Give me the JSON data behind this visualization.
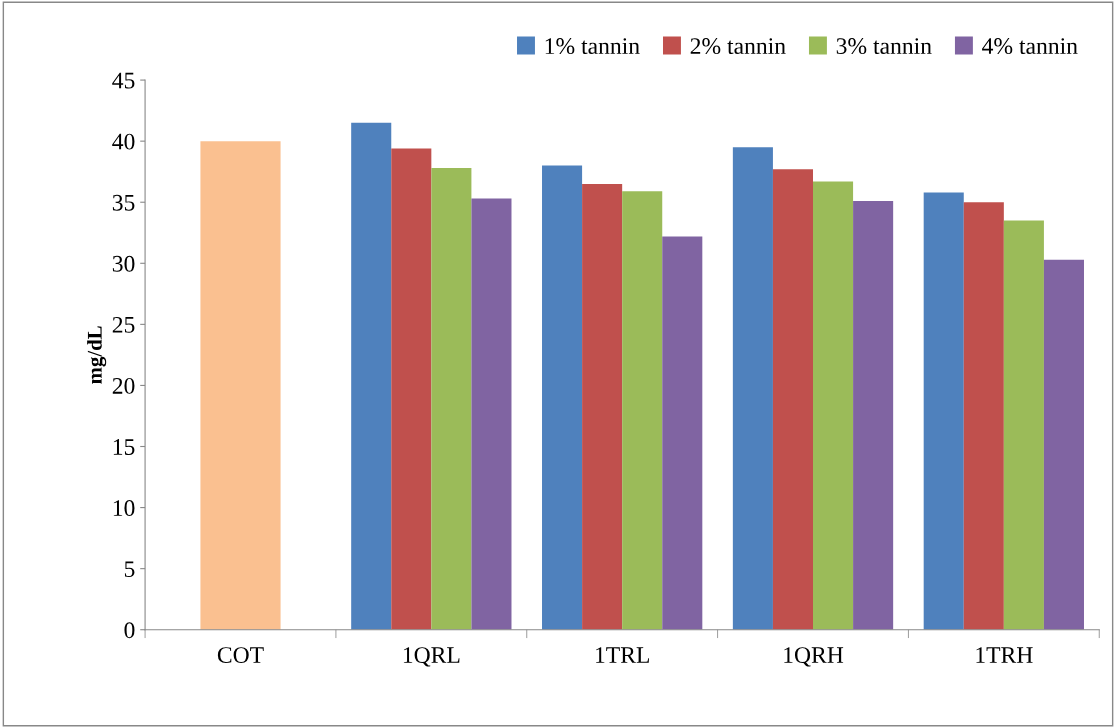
{
  "chart_data": {
    "type": "bar",
    "ylabel": "mg/dL",
    "categories": [
      "COT",
      "1QRL",
      "1TRL",
      "1QRH",
      "1TRH"
    ],
    "series": [
      {
        "color": "#fac090",
        "values": [
          40.0,
          null,
          null,
          null,
          null
        ]
      },
      {
        "name": "1% tannin",
        "color": "#4f81bd",
        "values": [
          null,
          41.5,
          38.0,
          39.5,
          35.8
        ]
      },
      {
        "name": "2% tannin",
        "color": "#c0504d",
        "values": [
          null,
          39.4,
          36.5,
          37.7,
          35.0
        ]
      },
      {
        "name": "3% tannin",
        "color": "#9bbb59",
        "values": [
          null,
          37.8,
          35.9,
          36.7,
          33.5
        ]
      },
      {
        "name": "4% tannin",
        "color": "#8064a2",
        "values": [
          null,
          35.3,
          32.2,
          35.1,
          30.3
        ]
      }
    ],
    "ylim": [
      0,
      45
    ],
    "yticks": [
      0,
      5,
      10,
      15,
      20,
      25,
      30,
      35,
      40,
      45
    ],
    "grid": false,
    "legend": "top right"
  }
}
